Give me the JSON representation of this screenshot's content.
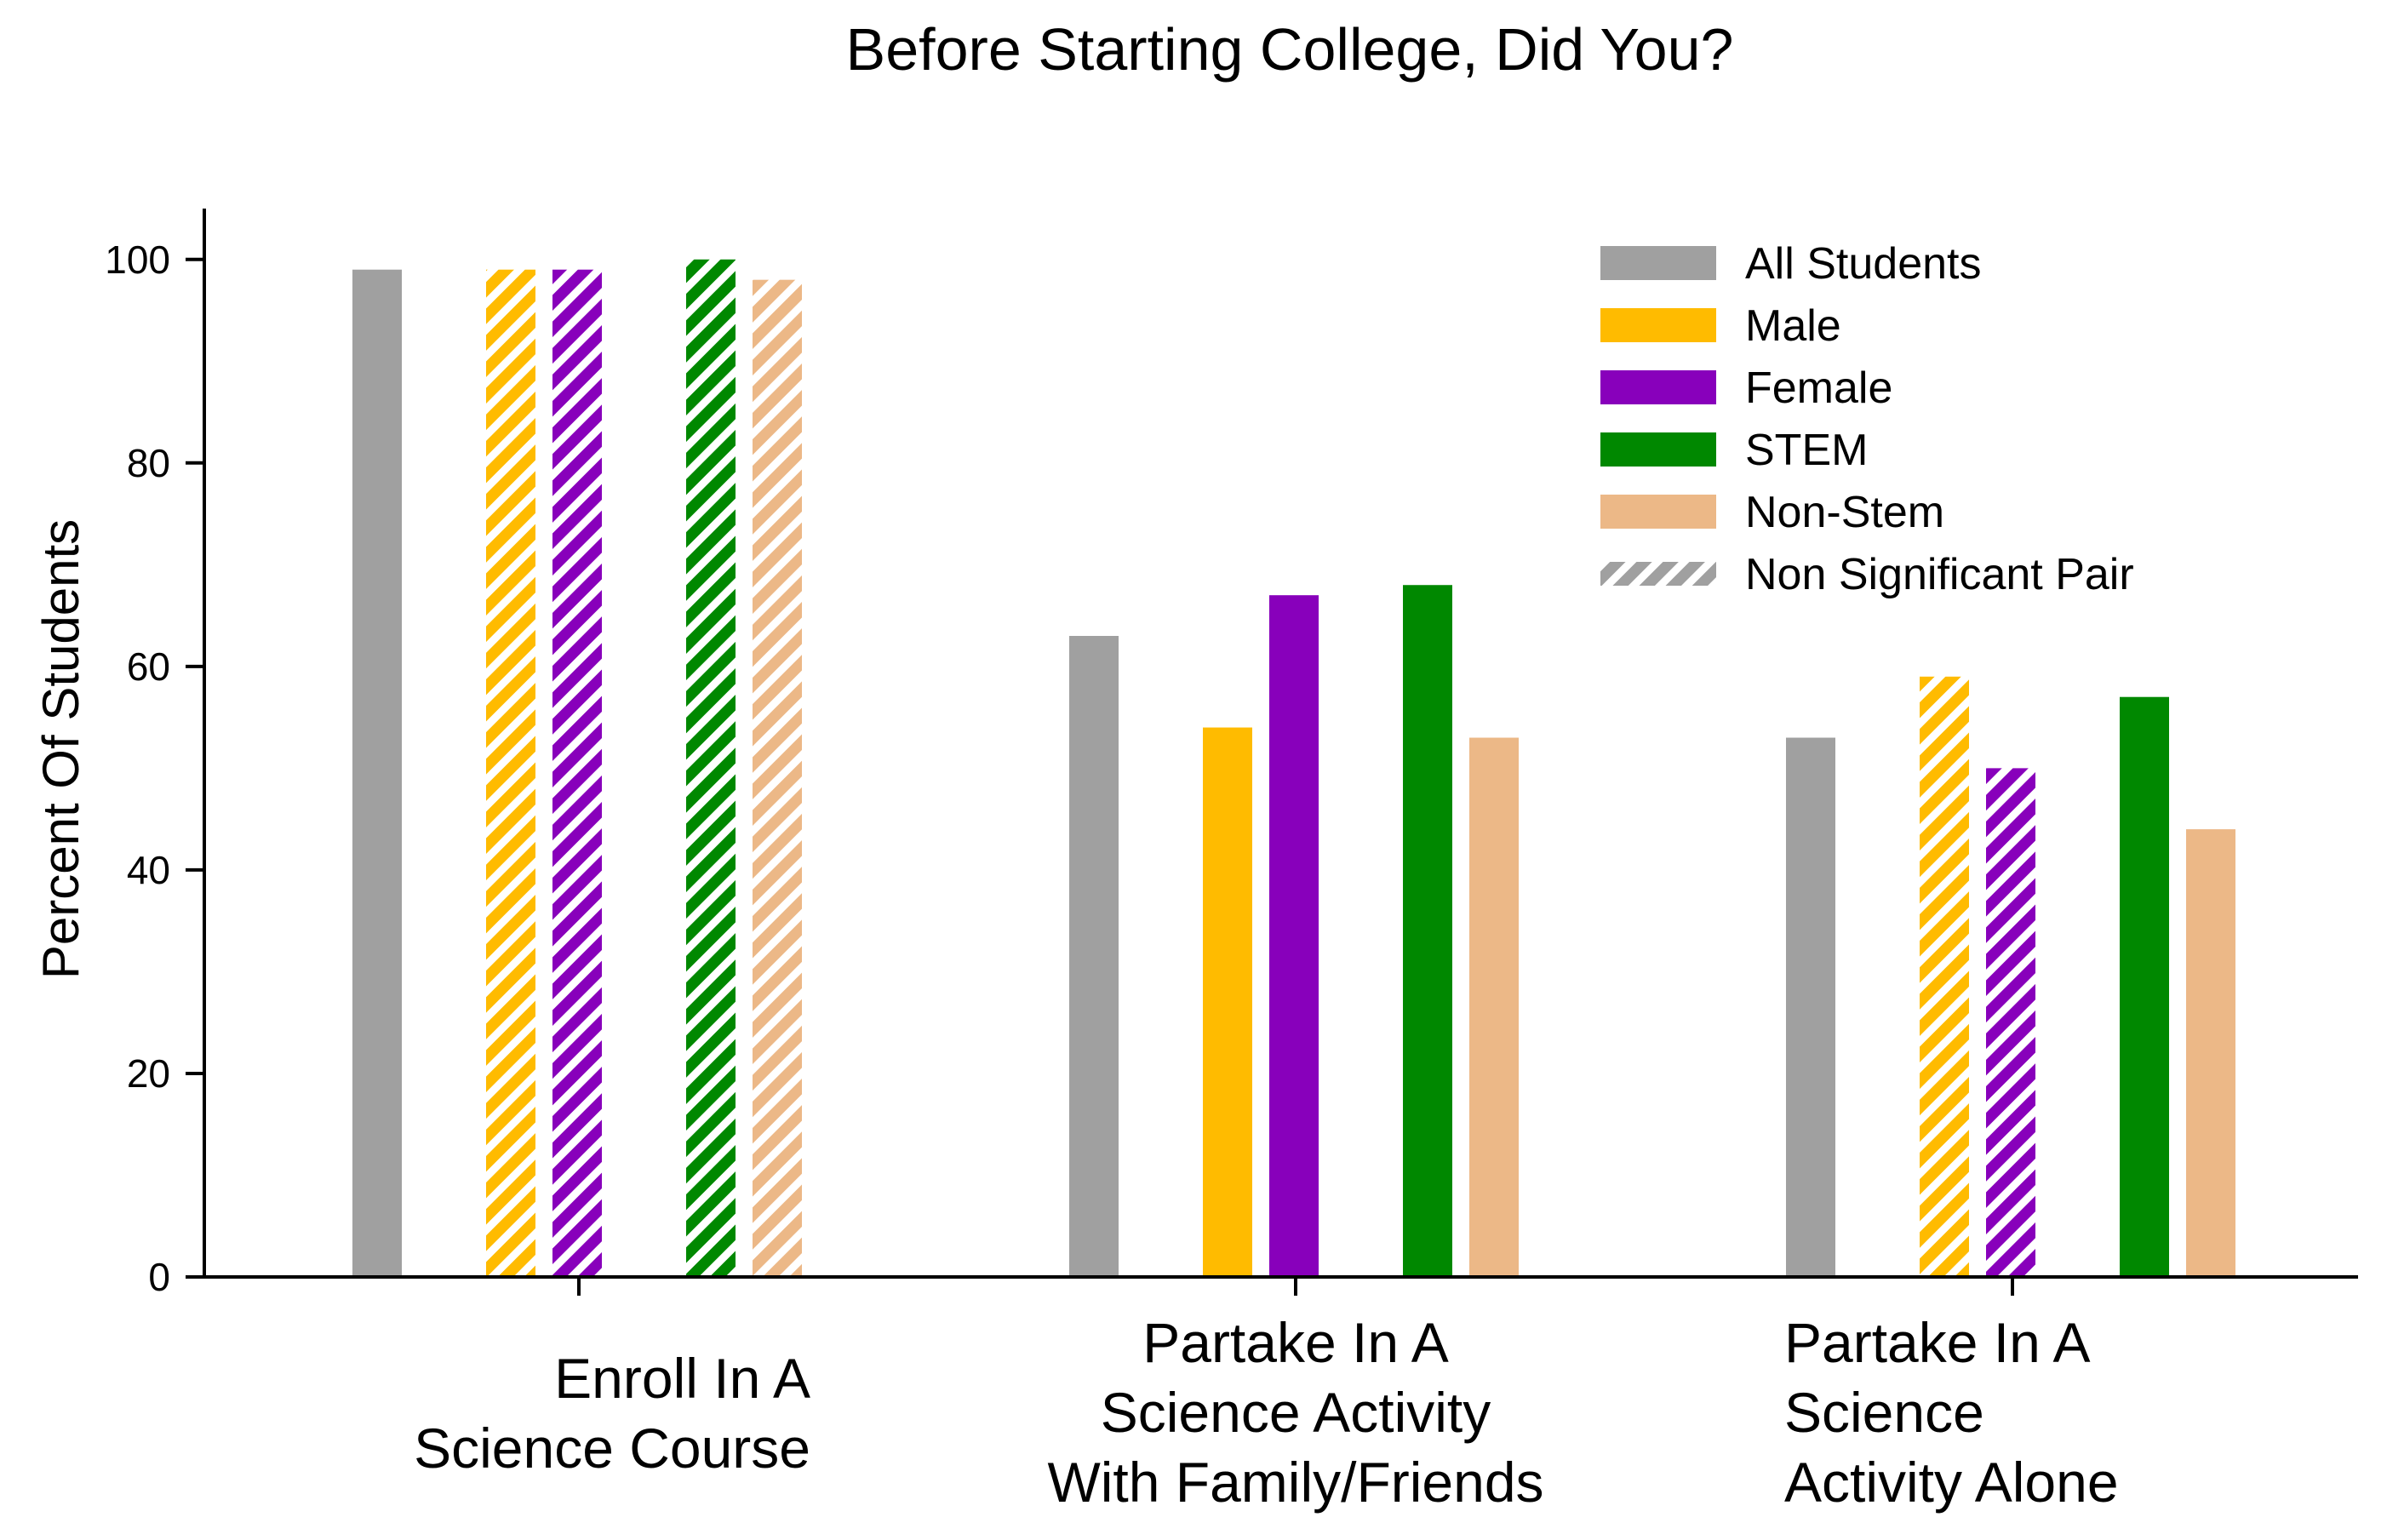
{
  "chart_data": {
    "type": "bar",
    "title": "Before Starting College, Did You?",
    "ylabel": "Percent Of Students",
    "xlabel": "",
    "ylim": [
      0,
      105
    ],
    "yticks": [
      0,
      20,
      40,
      60,
      80,
      100
    ],
    "categories": [
      "Enroll In A\nScience Course",
      "Partake In A\nScience Activity\nWith Family/Friends",
      "Partake In A\nScience\nActivity Alone"
    ],
    "category_align": [
      "right",
      "center",
      "left"
    ],
    "series": [
      {
        "name": "All Students",
        "color": "#a0a0a0",
        "values": [
          99,
          63,
          53
        ],
        "hatched": [
          false,
          false,
          false
        ]
      },
      {
        "name": "Male",
        "color": "#ffbb00",
        "values": [
          99,
          54,
          59
        ],
        "hatched": [
          true,
          false,
          true
        ]
      },
      {
        "name": "Female",
        "color": "#8800bb",
        "values": [
          99,
          67,
          50
        ],
        "hatched": [
          true,
          false,
          true
        ]
      },
      {
        "name": "STEM",
        "color": "#008800",
        "values": [
          100,
          68,
          57
        ],
        "hatched": [
          true,
          false,
          false
        ]
      },
      {
        "name": "Non-Stem",
        "color": "#ecb887",
        "values": [
          98,
          53,
          44
        ],
        "hatched": [
          true,
          false,
          false
        ]
      }
    ],
    "legend": {
      "position": "top-right",
      "hatch_label": "Non Significant Pair",
      "hatch_color": "#a0a0a0"
    }
  }
}
